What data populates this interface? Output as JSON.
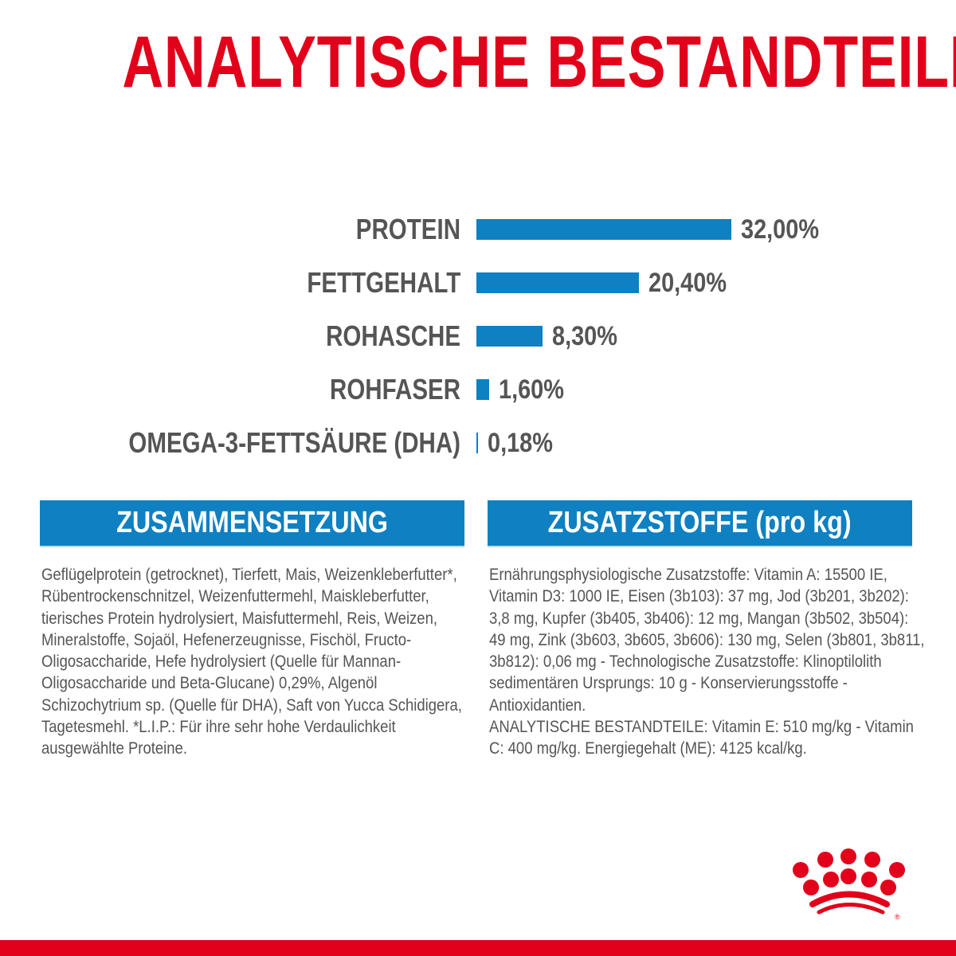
{
  "title": "ANALYTISCHE BESTANDTEILE",
  "chart_data": {
    "type": "bar",
    "orientation": "horizontal",
    "categories": [
      "PROTEIN",
      "FETTGEHALT",
      "ROHASCHE",
      "ROHFASER",
      "OMEGA-3-FETTSÄURE (DHA)"
    ],
    "values": [
      32.0,
      20.4,
      8.3,
      1.6,
      0.18
    ],
    "value_labels": [
      "32,00%",
      "20,40%",
      "8,30%",
      "1,60%",
      "0,18%"
    ],
    "unit": "%",
    "xlim": [
      0,
      32
    ],
    "grid": false,
    "bar_color": "#0f80c1"
  },
  "composition": {
    "heading": "ZUSAMMENSETZUNG",
    "text": "Geflügelprotein (getrocknet), Tierfett, Mais, Weizenkleberfutter*, Rübentrockenschnitzel, Weizenfuttermehl, Maiskleberfutter, tierisches Protein hydrolysiert, Maisfuttermehl, Reis, Weizen, Mineralstoffe, Sojaöl, Hefenerzeugnisse, Fischöl, Fructo-Oligosaccharide, Hefe hydrolysiert (Quelle für Mannan-Oligosaccharide und Beta-Glucane) 0,29%, Algenöl Schizochytrium sp. (Quelle für DHA), Saft von Yucca Schidigera, Tagetesmehl. *L.I.P.: Für ihre sehr hohe Verdaulichkeit ausgewählte Proteine."
  },
  "additives": {
    "heading": "ZUSATZSTOFFE (pro kg)",
    "text": "Ernährungsphysiologische Zusatzstoffe: Vitamin A: 15500 IE, Vitamin D3: 1000 IE, Eisen (3b103): 37 mg, Jod (3b201, 3b202): 3,8 mg, Kupfer (3b405, 3b406): 12 mg, Mangan (3b502, 3b504): 49 mg, Zink (3b603, 3b605, 3b606): 130 mg, Selen (3b801, 3b811, 3b812): 0,06 mg - Technologische Zusatzstoffe: Klinoptilolith sedimentären Ursprungs: 10 g - Konservierungsstoffe - Antioxidantien.",
    "text2": "ANALYTISCHE BESTANDTEILE: Vitamin E: 510 mg/kg - Vitamin C: 400 mg/kg. Energiegehalt (ME): 4125 kcal/kg."
  },
  "colors": {
    "brand_red": "#e2001a",
    "accent_blue": "#0f80c1",
    "text_gray": "#555555"
  },
  "logo": {
    "name": "crown-logo",
    "mark": "®"
  }
}
